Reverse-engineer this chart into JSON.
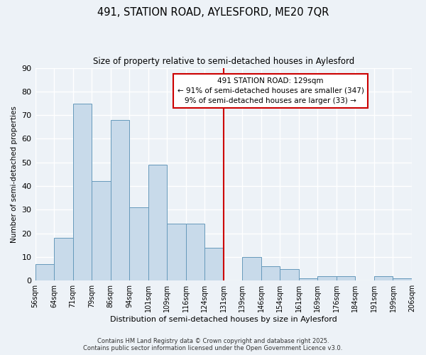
{
  "title": "491, STATION ROAD, AYLESFORD, ME20 7QR",
  "subtitle": "Size of property relative to semi-detached houses in Aylesford",
  "xlabel": "Distribution of semi-detached houses by size in Aylesford",
  "ylabel": "Number of semi-detached properties",
  "bin_labels": [
    "56sqm",
    "64sqm",
    "71sqm",
    "79sqm",
    "86sqm",
    "94sqm",
    "101sqm",
    "109sqm",
    "116sqm",
    "124sqm",
    "131sqm",
    "139sqm",
    "146sqm",
    "154sqm",
    "161sqm",
    "169sqm",
    "176sqm",
    "184sqm",
    "191sqm",
    "199sqm",
    "206sqm"
  ],
  "bar_heights": [
    7,
    18,
    75,
    42,
    68,
    31,
    49,
    24,
    24,
    14,
    0,
    10,
    6,
    5,
    1,
    2,
    2,
    0,
    2,
    1
  ],
  "bar_color": "#c8daea",
  "bar_edge_color": "#6699bb",
  "vline_index": 10,
  "vline_color": "#cc0000",
  "annotation_title": "491 STATION ROAD: 129sqm",
  "annotation_line1": "← 91% of semi-detached houses are smaller (347)",
  "annotation_line2": "9% of semi-detached houses are larger (33) →",
  "annotation_box_facecolor": "#ffffff",
  "annotation_box_edgecolor": "#cc0000",
  "footer_line1": "Contains HM Land Registry data © Crown copyright and database right 2025.",
  "footer_line2": "Contains public sector information licensed under the Open Government Licence v3.0.",
  "ylim": [
    0,
    90
  ],
  "yticks": [
    0,
    10,
    20,
    30,
    40,
    50,
    60,
    70,
    80,
    90
  ],
  "background_color": "#edf2f7",
  "grid_color": "#ffffff",
  "n_bars": 20
}
